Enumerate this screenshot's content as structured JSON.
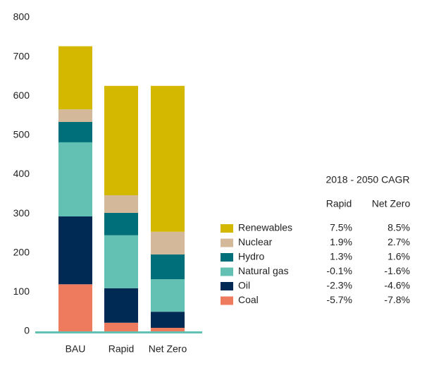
{
  "chart_data": {
    "type": "stacked_bar",
    "categories": [
      "BAU",
      "Rapid",
      "Net Zero"
    ],
    "ylim": [
      0,
      800
    ],
    "yticks": [
      0,
      100,
      200,
      300,
      400,
      500,
      600,
      700,
      800
    ],
    "axis_color": "#63c1b3",
    "series": [
      {
        "name": "Coal",
        "color": "#ef7b5e",
        "values": [
          120,
          22,
          9
        ]
      },
      {
        "name": "Oil",
        "color": "#002a54",
        "values": [
          173,
          88,
          41
        ]
      },
      {
        "name": "Natural gas",
        "color": "#63c1b3",
        "values": [
          189,
          135,
          83
        ]
      },
      {
        "name": "Hydro",
        "color": "#006f7a",
        "values": [
          52,
          57,
          63
        ]
      },
      {
        "name": "Nuclear",
        "color": "#d3b89a",
        "values": [
          32,
          45,
          58
        ]
      },
      {
        "name": "Renewables",
        "color": "#d4b800",
        "values": [
          161,
          279,
          372
        ]
      }
    ],
    "cagr_table": {
      "title": "2018 - 2050 CAGR",
      "columns": [
        "Rapid",
        "Net Zero"
      ],
      "rows": [
        [
          "-5.7%",
          "-7.8%"
        ],
        [
          "-2.3%",
          "-4.6%"
        ],
        [
          "-0.1%",
          "-1.6%"
        ],
        [
          "1.3%",
          "1.6%"
        ],
        [
          "1.9%",
          "2.7%"
        ],
        [
          "7.5%",
          "8.5%"
        ]
      ]
    }
  }
}
